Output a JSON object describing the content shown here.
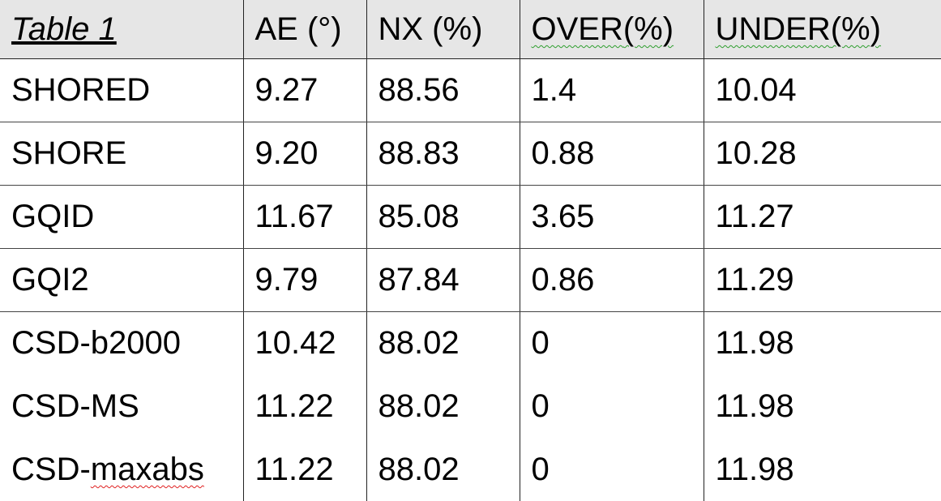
{
  "table": {
    "title": "Table 1",
    "headers": {
      "ae": "AE (°)",
      "nx": "NX (%)",
      "over_word": "OVER",
      "over_suffix": "(%)",
      "under_word": "UNDER",
      "under_suffix": "(%)"
    },
    "rows": [
      [
        "SHORED",
        "9.27",
        "88.56",
        "1.4",
        "10.04"
      ],
      [
        "SHORE",
        "9.20",
        "88.83",
        "0.88",
        "10.28"
      ],
      [
        "GQID",
        "11.67",
        "85.08",
        "3.65",
        "11.27"
      ],
      [
        "GQI2",
        "9.79",
        "87.84",
        "0.86",
        "11.29"
      ],
      [
        "CSD-b2000",
        "10.42",
        "88.02",
        "0",
        "11.98"
      ],
      [
        "CSD-MS",
        "11.22",
        "88.02",
        "0",
        "11.98"
      ],
      [
        "CSD-maxabs",
        "11.22",
        "88.02",
        "0",
        "11.98"
      ]
    ],
    "last_row_label_parts": [
      "CSD-",
      "maxabs"
    ]
  },
  "colors": {
    "header_background": "#e6e6e6",
    "grid_line": "#222222",
    "spell_grammar_underline": "#2e9e2e",
    "spell_error_underline": "#e02020"
  }
}
